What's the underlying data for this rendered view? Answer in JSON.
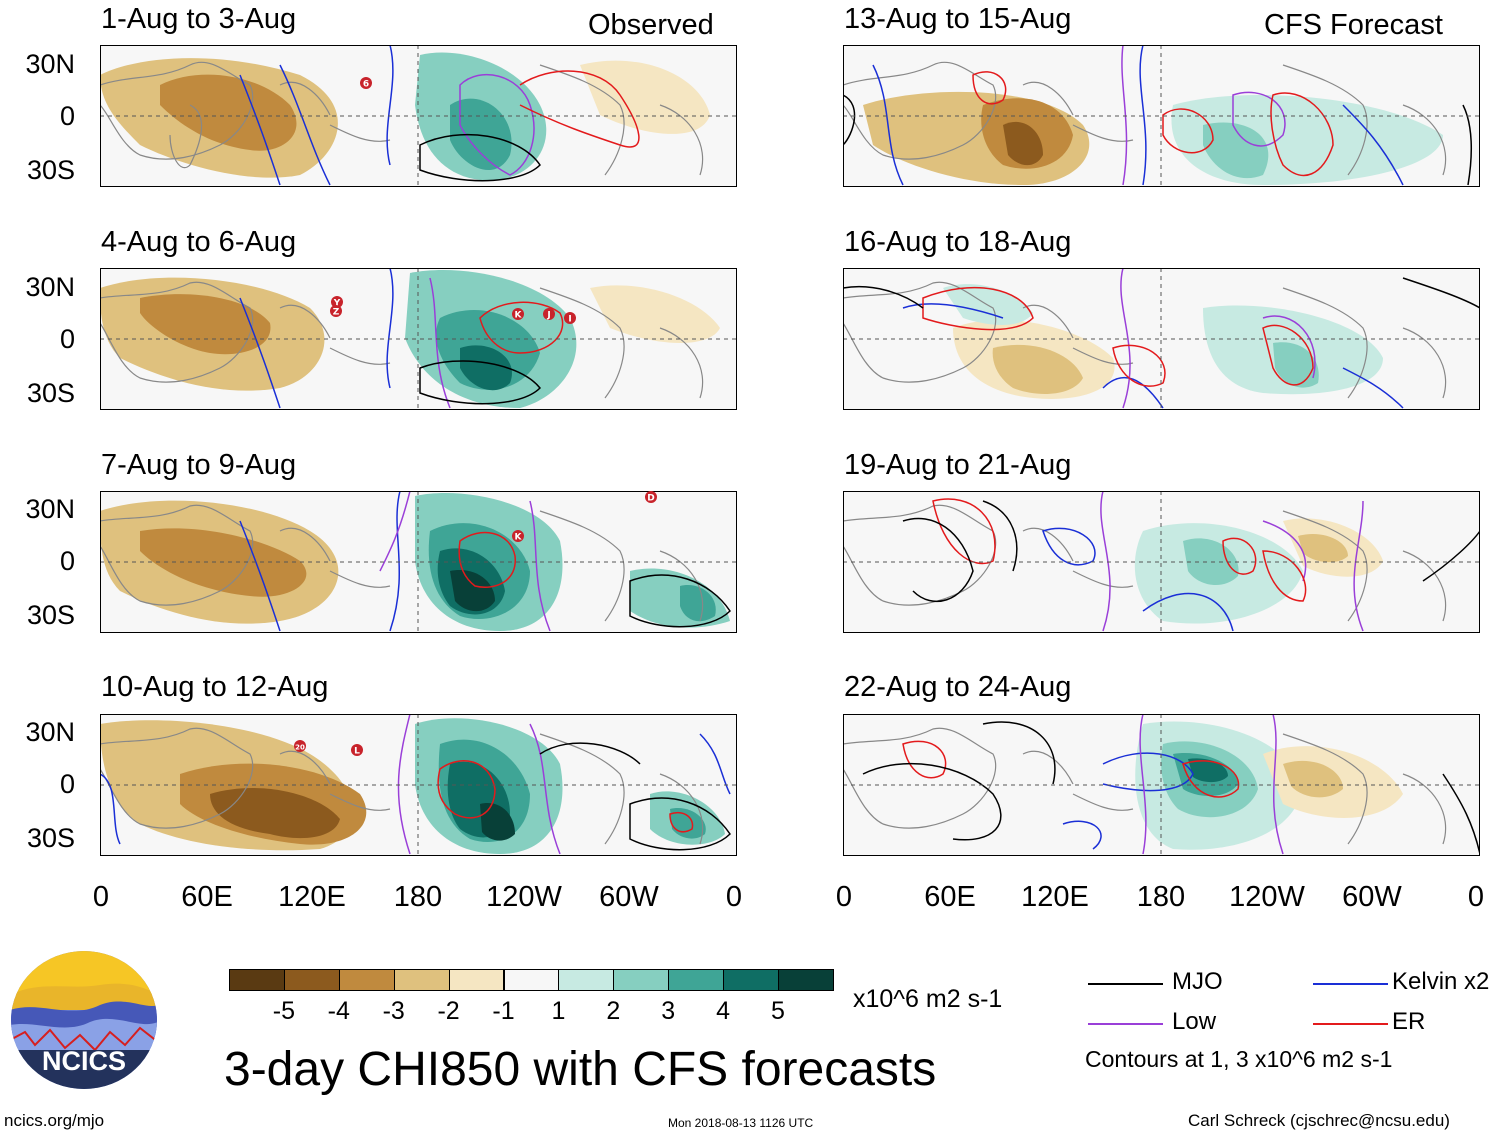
{
  "header": {
    "observed_label": "Observed",
    "forecast_label": "CFS Forecast"
  },
  "panels_left": [
    {
      "title": "1-Aug to 3-Aug"
    },
    {
      "title": "4-Aug to 6-Aug"
    },
    {
      "title": "7-Aug to 9-Aug"
    },
    {
      "title": "10-Aug to 12-Aug"
    }
  ],
  "panels_right": [
    {
      "title": "13-Aug to 15-Aug"
    },
    {
      "title": "16-Aug to 18-Aug"
    },
    {
      "title": "19-Aug to 21-Aug"
    },
    {
      "title": "22-Aug to 24-Aug"
    }
  ],
  "axes": {
    "lat_labels": [
      "30N",
      "0",
      "30S"
    ],
    "lon_labels": [
      "0",
      "60E",
      "120E",
      "180",
      "120W",
      "60W",
      "0"
    ]
  },
  "storm_markers": {
    "p0": [
      "6"
    ],
    "p1": [
      "Y",
      "Z",
      "K",
      "J",
      "I"
    ],
    "p2": [
      "K",
      "D"
    ],
    "p3": [
      "20",
      "L"
    ]
  },
  "colorbar": {
    "colors": [
      "#5a3a12",
      "#8c5a1e",
      "#c08a3e",
      "#dfc17e",
      "#f5e6c2",
      "#f7f7f7",
      "#c7eae2",
      "#86cfc0",
      "#3fa596",
      "#0f6e64",
      "#084038"
    ],
    "ticks": [
      "-5",
      "-4",
      "-3",
      "-2",
      "-1",
      "1",
      "2",
      "3",
      "4",
      "5"
    ],
    "units": "x10^6 m2 s-1"
  },
  "legend": {
    "items": [
      {
        "label": "MJO",
        "color": "#000000"
      },
      {
        "label": "Kelvin x2",
        "color": "#1a2fd6"
      },
      {
        "label": "Low",
        "color": "#9a3fd8"
      },
      {
        "label": "ER",
        "color": "#e31a1c"
      }
    ],
    "note": "Contours at 1, 3 x10^6 m2 s-1"
  },
  "logo": {
    "text": "NCICS"
  },
  "main_title": "3-day CHI850 with CFS forecasts",
  "footer": {
    "url": "ncics.org/mjo",
    "timestamp": "Mon 2018-08-13 1126 UTC",
    "credit": "Carl Schreck (cjschrec@ncsu.edu)"
  }
}
